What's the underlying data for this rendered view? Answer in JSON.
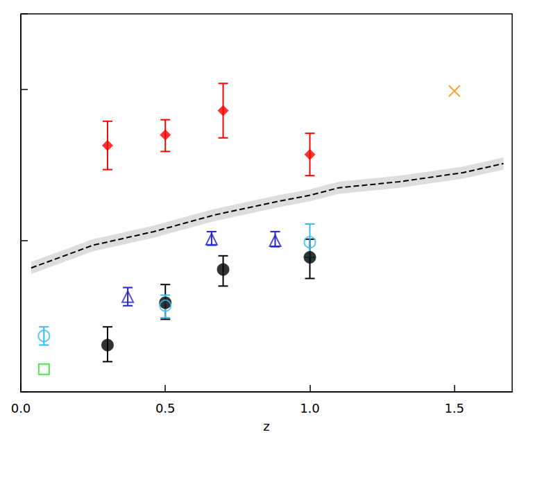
{
  "chart_data": {
    "type": "scatter",
    "x_label": "z",
    "xlim": [
      0,
      1.7
    ],
    "xticks": [
      {
        "value": 0,
        "label": "0.0"
      },
      {
        "value": 0.5,
        "label": "0.5"
      },
      {
        "value": 1.0,
        "label": "1.0"
      },
      {
        "value": 1.5,
        "label": "1.5"
      }
    ],
    "ylim": [
      0,
      2.5
    ],
    "yticks": [
      0,
      1,
      2
    ],
    "tick_labels": "x",
    "grid": false,
    "series": [
      {
        "type": "line",
        "color": "#000000",
        "line_style": "dashed",
        "x": [
          0.036,
          0.25,
          0.46,
          0.67,
          0.89,
          1.0,
          1.1,
          1.31,
          1.53,
          1.67
        ],
        "values": [
          0.82,
          0.97,
          1.06,
          1.17,
          1.26,
          1.3,
          1.35,
          1.39,
          1.45,
          1.51
        ],
        "band_low": [
          0.78,
          0.93,
          1.02,
          1.13,
          1.22,
          1.26,
          1.31,
          1.35,
          1.41,
          1.47
        ],
        "band_high": [
          0.86,
          1.01,
          1.1,
          1.21,
          1.3,
          1.34,
          1.39,
          1.43,
          1.49,
          1.55
        ],
        "band_color": "#dddddd"
      },
      {
        "type": "scatter",
        "color": "#ff0000",
        "marker": "diamond",
        "x": [
          0.3,
          0.5,
          0.7,
          1.0
        ],
        "values": [
          1.63,
          1.7,
          1.86,
          1.57
        ],
        "err_low": [
          1.47,
          1.59,
          1.68,
          1.43
        ],
        "err_high": [
          1.79,
          1.8,
          2.04,
          1.71
        ]
      },
      {
        "type": "scatter",
        "color": "#ff8c00",
        "marker": "x",
        "x": [
          1.5
        ],
        "values": [
          1.99
        ]
      },
      {
        "type": "scatter",
        "color": "#000000",
        "marker": "circle",
        "x": [
          0.3,
          0.5,
          0.7,
          1.0
        ],
        "values": [
          0.31,
          0.59,
          0.81,
          0.89
        ],
        "err_low": [
          0.2,
          0.48,
          0.7,
          0.75
        ],
        "err_high": [
          0.43,
          0.71,
          0.9,
          1.01
        ]
      },
      {
        "type": "scatter",
        "color": "#33bbee",
        "marker": "open_circle",
        "x": [
          0.08,
          0.5,
          1.0
        ],
        "values": [
          0.37,
          0.57,
          0.99
        ],
        "err_low": [
          0.31,
          0.49,
          0.89
        ],
        "err_high": [
          0.43,
          0.64,
          1.11
        ]
      },
      {
        "type": "scatter",
        "color": "#2222cc",
        "marker": "open_triangle",
        "x": [
          0.37,
          0.66,
          0.88
        ],
        "values": [
          0.63,
          1.01,
          1.0
        ],
        "err_low": [
          0.57,
          0.97,
          0.96
        ],
        "err_high": [
          0.69,
          1.06,
          1.06
        ]
      },
      {
        "type": "scatter",
        "color": "#22dd22",
        "marker": "open_square",
        "x": [
          0.08
        ],
        "values": [
          0.15
        ]
      }
    ]
  }
}
